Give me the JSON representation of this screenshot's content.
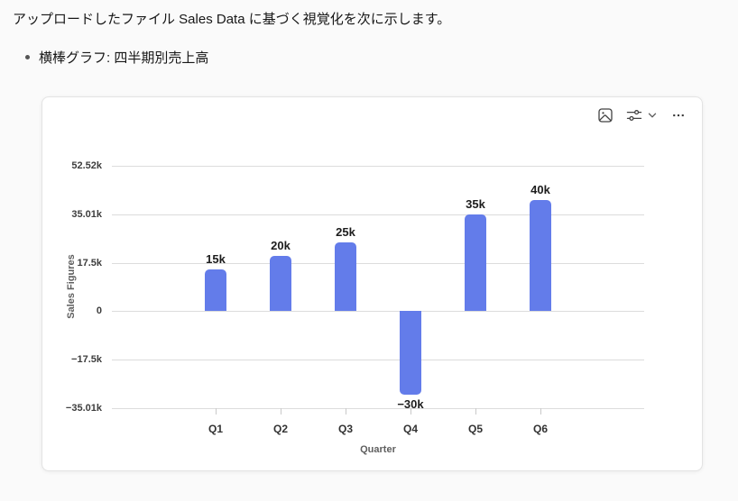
{
  "message": {
    "intro": "アップロードしたファイル Sales Data に基づく視覚化を次に示します。",
    "bullet": "横棒グラフ: 四半期別売上高"
  },
  "toolbar": {
    "icons": {
      "copy_image": "image-icon",
      "settings": "sliders-icon",
      "settings_dropdown": "chevron-down-icon",
      "more": "ellipsis-icon"
    }
  },
  "chart_data": {
    "type": "bar",
    "title": "",
    "categories": [
      "Q1",
      "Q2",
      "Q3",
      "Q4",
      "Q5",
      "Q6"
    ],
    "values": [
      15000,
      20000,
      25000,
      -30000,
      35000,
      40000
    ],
    "bar_labels": [
      "15k",
      "20k",
      "25k",
      "−30k",
      "35k",
      "40k"
    ],
    "xlabel": "Quarter",
    "ylabel": "Sales Figures",
    "ylim": [
      -35010,
      52520
    ],
    "yticks": [
      {
        "value": 52520,
        "label": "52.52k"
      },
      {
        "value": 35010,
        "label": "35.01k"
      },
      {
        "value": 17500,
        "label": "17.5k"
      },
      {
        "value": 0,
        "label": "0"
      },
      {
        "value": -17500,
        "label": "−17.5k"
      },
      {
        "value": -35010,
        "label": "−35.01k"
      }
    ],
    "grid": "horizontal",
    "legend": "none",
    "bar_color": "#637CEA"
  }
}
